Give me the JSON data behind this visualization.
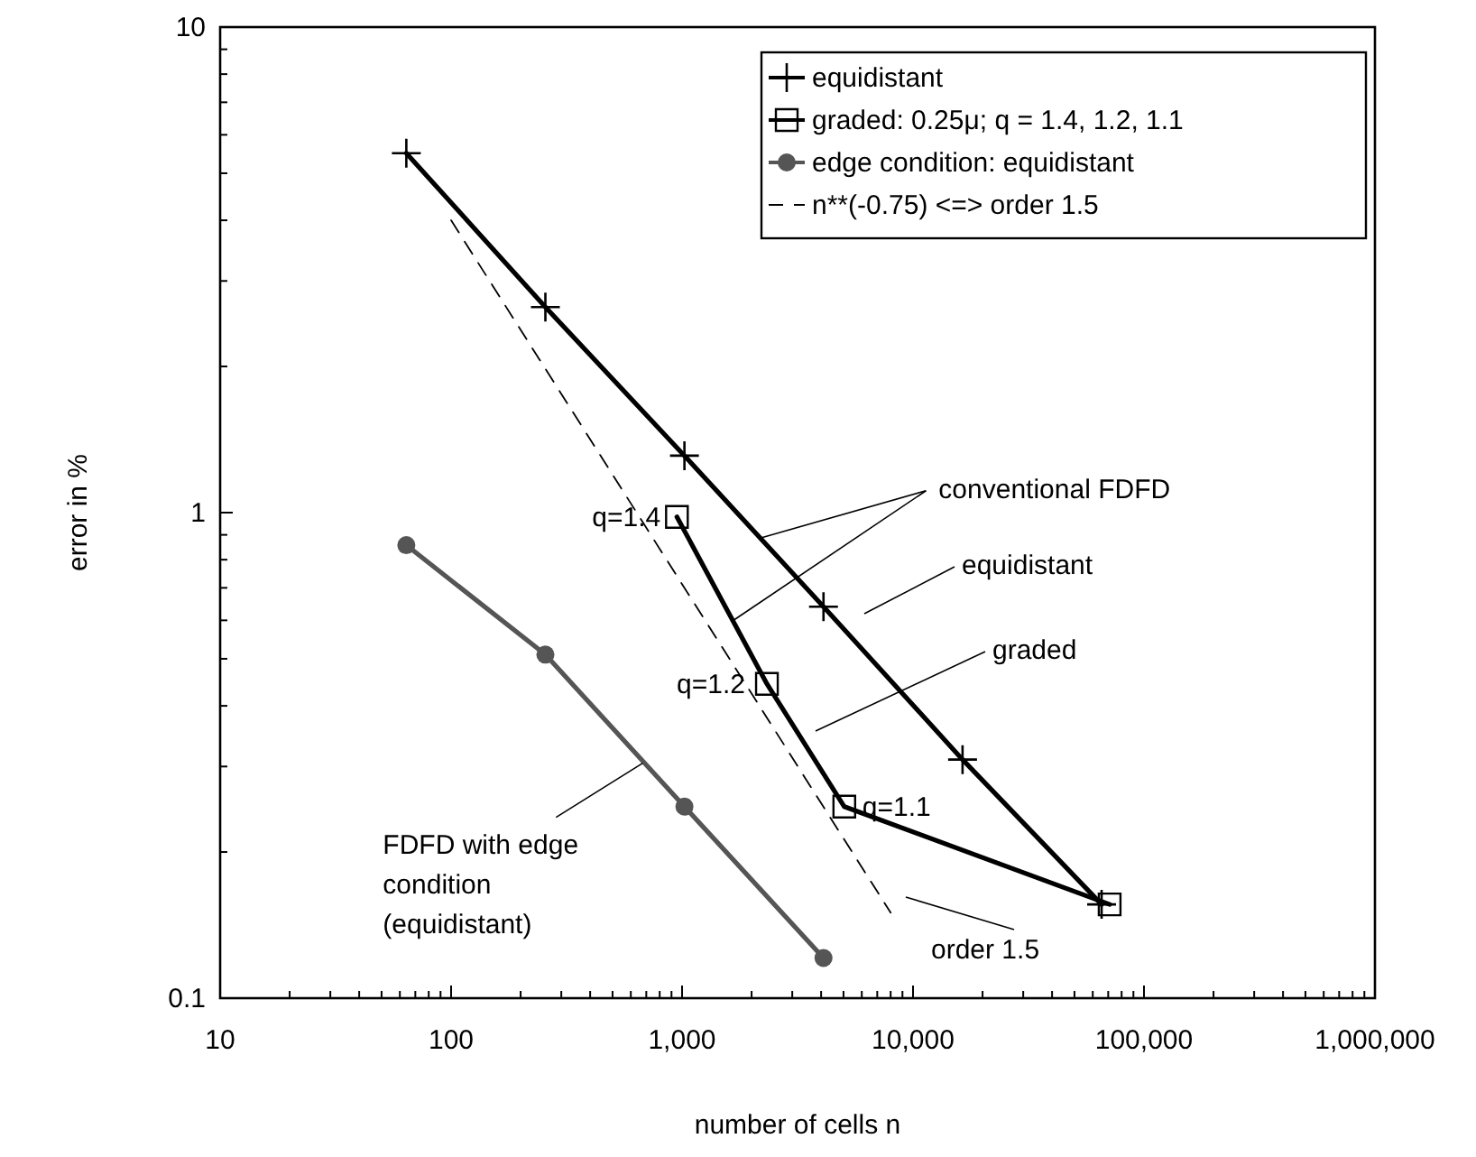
{
  "chart_data": {
    "type": "line",
    "xlabel": "number of cells n",
    "ylabel": "error in %",
    "log": "xy",
    "xlim": [
      10,
      1000000
    ],
    "ylim": [
      0.1,
      10
    ],
    "xticks": [
      10,
      {
        "value": 20,
        "label": null
      },
      {
        "value": 30,
        "label": null
      },
      {
        "value": 40,
        "label": null
      },
      {
        "value": 50,
        "label": null
      },
      {
        "value": 60,
        "label": null
      },
      {
        "value": 70,
        "label": null
      },
      {
        "value": 80,
        "label": null
      },
      {
        "value": 90,
        "label": null
      },
      100,
      {
        "value": 200,
        "label": null
      },
      {
        "value": 300,
        "label": null
      },
      {
        "value": 400,
        "label": null
      },
      {
        "value": 500,
        "label": null
      },
      {
        "value": 600,
        "label": null
      },
      {
        "value": 700,
        "label": null
      },
      {
        "value": 800,
        "label": null
      },
      {
        "value": 900,
        "label": null
      },
      {
        "value": 1000,
        "label": "1,000"
      },
      {
        "value": 2000,
        "label": null
      },
      {
        "value": 3000,
        "label": null
      },
      {
        "value": 4000,
        "label": null
      },
      {
        "value": 5000,
        "label": null
      },
      {
        "value": 6000,
        "label": null
      },
      {
        "value": 7000,
        "label": null
      },
      {
        "value": 8000,
        "label": null
      },
      {
        "value": 9000,
        "label": null
      },
      {
        "value": 10000,
        "label": "10,000"
      },
      {
        "value": 20000,
        "label": null
      },
      {
        "value": 30000,
        "label": null
      },
      {
        "value": 40000,
        "label": null
      },
      {
        "value": 50000,
        "label": null
      },
      {
        "value": 60000,
        "label": null
      },
      {
        "value": 70000,
        "label": null
      },
      {
        "value": 80000,
        "label": null
      },
      {
        "value": 90000,
        "label": null
      },
      {
        "value": 100000,
        "label": "100,000"
      },
      {
        "value": 200000,
        "label": null
      },
      {
        "value": 300000,
        "label": null
      },
      {
        "value": 400000,
        "label": null
      },
      {
        "value": 500000,
        "label": null
      },
      {
        "value": 600000,
        "label": null
      },
      {
        "value": 700000,
        "label": null
      },
      {
        "value": 800000,
        "label": null
      },
      {
        "value": 900000,
        "label": null
      },
      {
        "value": 1000000,
        "label": "1,000,000"
      }
    ],
    "yticks": [
      0.1,
      {
        "value": 0.2,
        "label": null
      },
      {
        "value": 0.3,
        "label": null
      },
      {
        "value": 0.4,
        "label": null
      },
      {
        "value": 0.5,
        "label": null
      },
      {
        "value": 0.6,
        "label": null
      },
      {
        "value": 0.7,
        "label": null
      },
      {
        "value": 0.8,
        "label": null
      },
      {
        "value": 0.9,
        "label": null
      },
      1,
      {
        "value": 2,
        "label": null
      },
      {
        "value": 3,
        "label": null
      },
      {
        "value": 4,
        "label": null
      },
      {
        "value": 5,
        "label": null
      },
      {
        "value": 6,
        "label": null
      },
      {
        "value": 7,
        "label": null
      },
      {
        "value": 8,
        "label": null
      },
      {
        "value": 9,
        "label": null
      },
      10
    ],
    "grid": false,
    "legend": "top right",
    "series": [
      {
        "name": "equidistant",
        "color": "#000000",
        "marker": "cross",
        "line_style": "solid",
        "x": [
          64,
          256,
          1024,
          4096,
          16384,
          65536
        ],
        "values": [
          5.5,
          2.65,
          1.31,
          0.64,
          0.31,
          0.156
        ]
      },
      {
        "name": "graded: 0.25μ; q = 1.4, 1.2, 1.1",
        "color": "#000000",
        "marker": "square",
        "line_style": "solid",
        "x": [
          950,
          2330,
          5040,
          71000
        ],
        "values": [
          0.98,
          0.444,
          0.248,
          0.156
        ]
      },
      {
        "name": "edge condition: equidistant",
        "color": "#555555",
        "marker": "circle",
        "line_style": "solid",
        "x": [
          64,
          256,
          1024,
          4096
        ],
        "values": [
          0.857,
          0.51,
          0.248,
          0.121
        ]
      },
      {
        "name": "n**(-0.75)  <=> order 1.5",
        "color": "#000000",
        "marker": "none",
        "line_style": "dashed",
        "x": [
          100,
          8000
        ],
        "values": [
          4.0,
          0.15
        ]
      }
    ],
    "annotations": [
      {
        "text": "conventional FDFD",
        "x": 1660,
        "y": 0.599
      },
      "equidistant",
      "graded",
      "order 1.5",
      {
        "text": "FDFD with edge\ncondition\n(equidistant)",
        "x": 700,
        "y": 0.31
      },
      {
        "text": "q=1.4",
        "x": 950,
        "y": 0.98
      },
      {
        "text": "q=1.2",
        "x": 2330,
        "y": 0.444
      },
      {
        "text": "q=1.1",
        "x": 5040,
        "y": 0.248
      }
    ]
  }
}
